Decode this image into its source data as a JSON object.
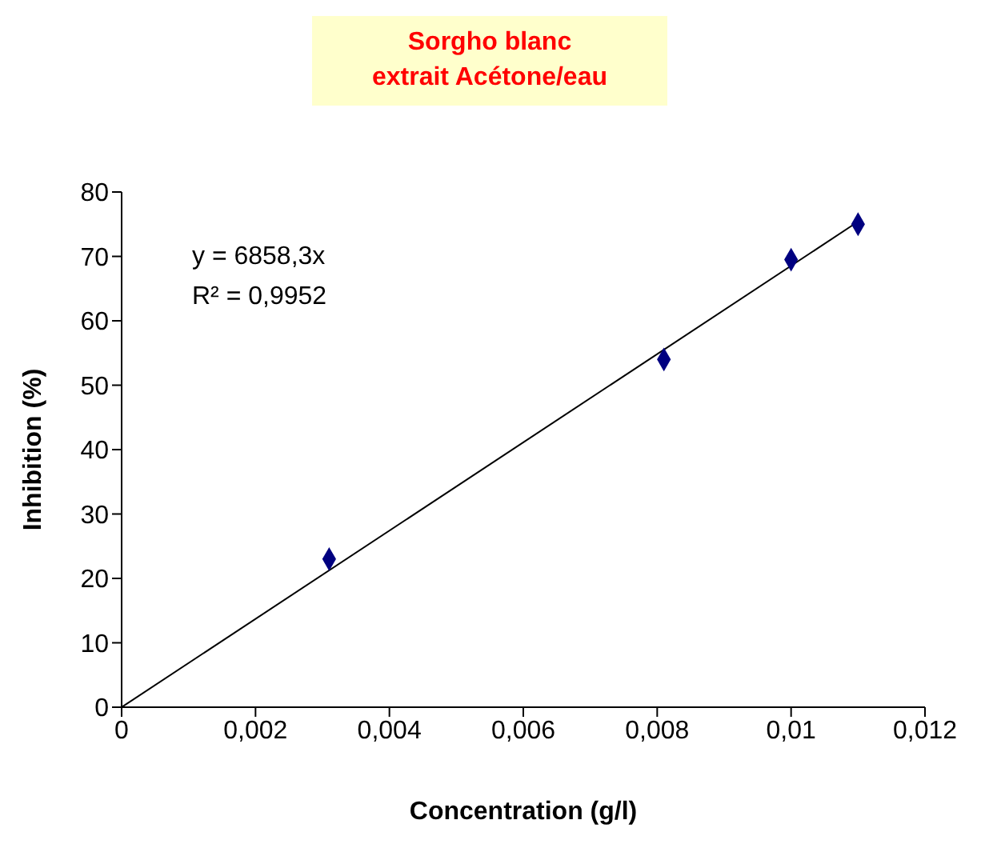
{
  "chart_data": {
    "type": "scatter",
    "title": "Sorgho blanc\nextrait Acétone/eau",
    "xlabel": "Concentration (g/l)",
    "ylabel": "Inhibition (%)",
    "annotations": [
      "y = 6858,3x",
      "R² = 0,9952"
    ],
    "x": [
      0.0031,
      0.0081,
      0.01,
      0.011
    ],
    "series": [
      {
        "color": "#000080",
        "marker": "diamond",
        "values": [
          23,
          54,
          69.5,
          75
        ]
      },
      {
        "type": "line",
        "color": "#000000",
        "marker": "none",
        "x": [
          0,
          0.011
        ],
        "values": [
          0,
          75.4
        ]
      }
    ],
    "xlim": [
      0,
      0.012
    ],
    "xticks": [
      0,
      {
        "value": 0.002,
        "label": "0,002"
      },
      {
        "value": 0.004,
        "label": "0,004"
      },
      {
        "value": 0.006,
        "label": "0,006"
      },
      {
        "value": 0.008,
        "label": "0,008"
      },
      {
        "value": 0.01,
        "label": "0,01"
      },
      {
        "value": 0.012,
        "label": "0,012"
      }
    ],
    "ylim": [
      0,
      80
    ],
    "yticks": [
      0,
      10,
      20,
      30,
      40,
      50,
      60,
      70,
      80
    ],
    "grid": false,
    "legend": false
  }
}
